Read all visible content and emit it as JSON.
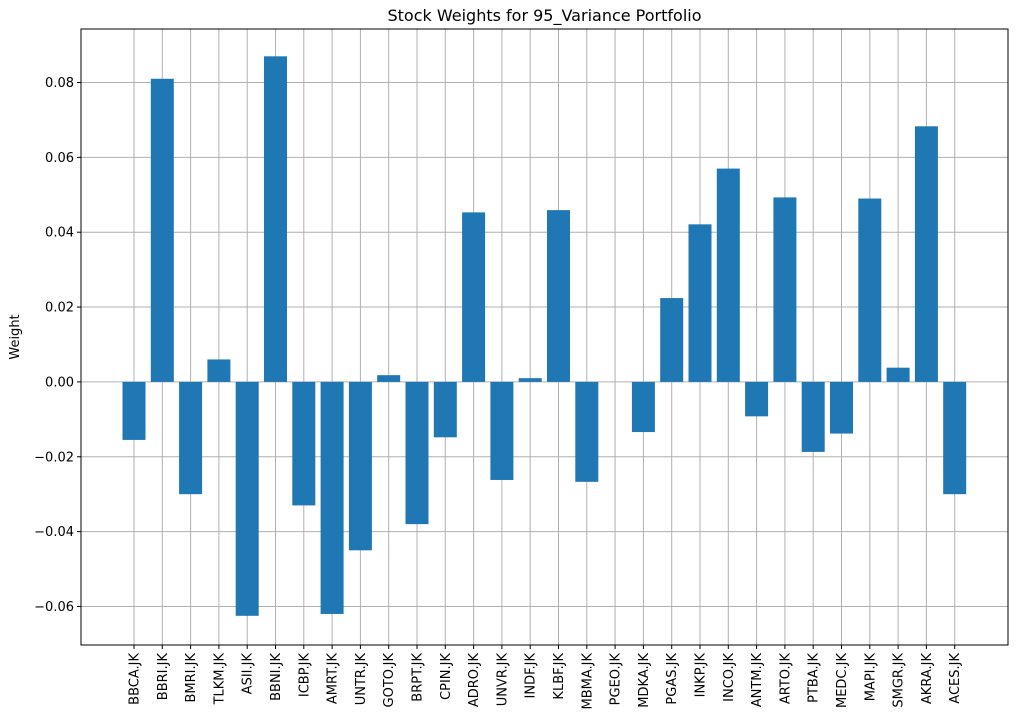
{
  "chart_data": {
    "type": "bar",
    "title": "Stock Weights for 95_Variance Portfolio",
    "xlabel": "",
    "ylabel": "Weight",
    "categories": [
      "BBCA.JK",
      "BBRI.JK",
      "BMRI.JK",
      "TLKM.JK",
      "ASII.JK",
      "BBNI.JK",
      "ICBP.JK",
      "AMRT.JK",
      "UNTR.JK",
      "GOTO.JK",
      "BRPT.JK",
      "CPIN.JK",
      "ADRO.JK",
      "UNVR.JK",
      "INDF.JK",
      "KLBF.JK",
      "MBMA.JK",
      "PGEO.JK",
      "MDKA.JK",
      "PGAS.JK",
      "INKP.JK",
      "INCO.JK",
      "ANTM.JK",
      "ARTO.JK",
      "PTBA.JK",
      "MEDC.JK",
      "MAPI.JK",
      "SMGR.JK",
      "AKRA.JK",
      "ACES.JK"
    ],
    "values": [
      -0.0155,
      0.081,
      -0.03,
      0.006,
      -0.0625,
      0.087,
      -0.033,
      -0.062,
      -0.045,
      0.0018,
      -0.038,
      -0.0148,
      0.0453,
      -0.0262,
      0.001,
      0.0459,
      -0.0267,
      0.0,
      -0.0134,
      0.0224,
      0.0421,
      0.057,
      -0.0092,
      0.0493,
      -0.0187,
      -0.0138,
      0.049,
      0.0038,
      0.0683,
      -0.03
    ],
    "yticks": [
      -0.06,
      -0.04,
      -0.02,
      0.0,
      0.02,
      0.04,
      0.06,
      0.08
    ],
    "ytick_labels": [
      "−0.06",
      "−0.04",
      "−0.02",
      "0.00",
      "0.02",
      "0.04",
      "0.06",
      "0.08"
    ],
    "ylim": [
      -0.0703,
      0.0943
    ],
    "grid": true,
    "legend": "none",
    "bar_color": "#1f77b4"
  }
}
